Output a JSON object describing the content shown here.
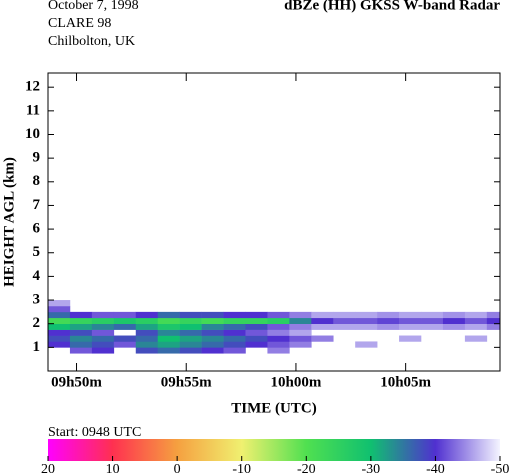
{
  "chart_data": {
    "type": "heatmap",
    "info_lines": [
      "October  7, 1998",
      "CLARE 98",
      "Chilbolton, UK"
    ],
    "title": "dBZe (HH)  GKSS  W-band Radar",
    "xlabel": "TIME (UTC)",
    "ylabel": "HEIGHT AGL (km)",
    "start_label": "Start: 0948 UTC",
    "xlim": [
      588.7,
      609.3
    ],
    "ylim": [
      0,
      12.6
    ],
    "xticks": [
      {
        "value": 590,
        "label": "09h50m"
      },
      {
        "value": 595,
        "label": "09h55m"
      },
      {
        "value": 600,
        "label": "10h00m"
      },
      {
        "value": 605,
        "label": "10h05m"
      }
    ],
    "yticks": [
      1,
      2,
      3,
      4,
      5,
      6,
      7,
      8,
      9,
      10,
      11,
      12
    ],
    "x_edges": [
      588.7,
      589.7,
      590.7,
      591.7,
      592.7,
      593.7,
      594.7,
      595.7,
      596.7,
      597.7,
      598.7,
      599.7,
      600.7,
      601.7,
      602.7,
      603.7,
      604.7,
      605.7,
      606.7,
      607.7,
      608.7,
      609.3
    ],
    "y_edges": [
      0.75,
      1.0,
      1.25,
      1.5,
      1.75,
      2.0,
      2.25,
      2.5,
      2.75,
      3.0
    ],
    "z": [
      [
        null,
        -42,
        -40,
        null,
        -38,
        -36,
        -38,
        -40,
        -42,
        null,
        -44,
        null,
        null,
        null,
        null,
        null,
        null,
        null,
        null,
        null,
        null
      ],
      [
        -40,
        -36,
        -38,
        -42,
        -34,
        -32,
        -34,
        -36,
        -38,
        -40,
        -42,
        -44,
        null,
        null,
        -46,
        null,
        null,
        null,
        null,
        null,
        null
      ],
      [
        -38,
        -34,
        -36,
        -38,
        -36,
        -30,
        -32,
        -34,
        -36,
        -38,
        -40,
        -42,
        -44,
        null,
        null,
        null,
        -46,
        null,
        null,
        -46,
        null
      ],
      [
        -40,
        -38,
        -42,
        null,
        -38,
        -34,
        -36,
        -38,
        -40,
        -42,
        -44,
        -46,
        null,
        null,
        null,
        null,
        null,
        null,
        null,
        null,
        null
      ],
      [
        -30,
        -32,
        -34,
        -36,
        -32,
        -28,
        -30,
        -34,
        -36,
        -38,
        -42,
        -44,
        -46,
        -46,
        -46,
        -45,
        -46,
        -46,
        -45,
        -46,
        -44
      ],
      [
        -22,
        -24,
        -26,
        -28,
        -26,
        -22,
        -24,
        -22,
        -24,
        -24,
        -26,
        -34,
        -40,
        -42,
        -42,
        -41,
        -42,
        -42,
        -40,
        -42,
        -40
      ],
      [
        -36,
        -40,
        -42,
        -42,
        -40,
        -36,
        -38,
        -38,
        -40,
        -40,
        -42,
        -44,
        -46,
        -46,
        -46,
        -45,
        -46,
        -46,
        -45,
        -46,
        -44
      ],
      [
        -42,
        null,
        null,
        null,
        null,
        null,
        null,
        null,
        null,
        null,
        null,
        null,
        null,
        null,
        null,
        null,
        null,
        null,
        null,
        null,
        null
      ],
      [
        -46,
        null,
        null,
        null,
        null,
        null,
        null,
        null,
        null,
        null,
        null,
        null,
        null,
        null,
        null,
        null,
        null,
        null,
        null,
        null,
        null
      ]
    ],
    "colorbar": {
      "ticks": [
        20,
        10,
        0,
        -10,
        -20,
        -30,
        -40,
        -50
      ],
      "colors": [
        "#ff00ff",
        "#ff3050",
        "#f5a040",
        "#f0f070",
        "#50e050",
        "#10c070",
        "#5030d0",
        "#f4f4ff"
      ]
    }
  }
}
